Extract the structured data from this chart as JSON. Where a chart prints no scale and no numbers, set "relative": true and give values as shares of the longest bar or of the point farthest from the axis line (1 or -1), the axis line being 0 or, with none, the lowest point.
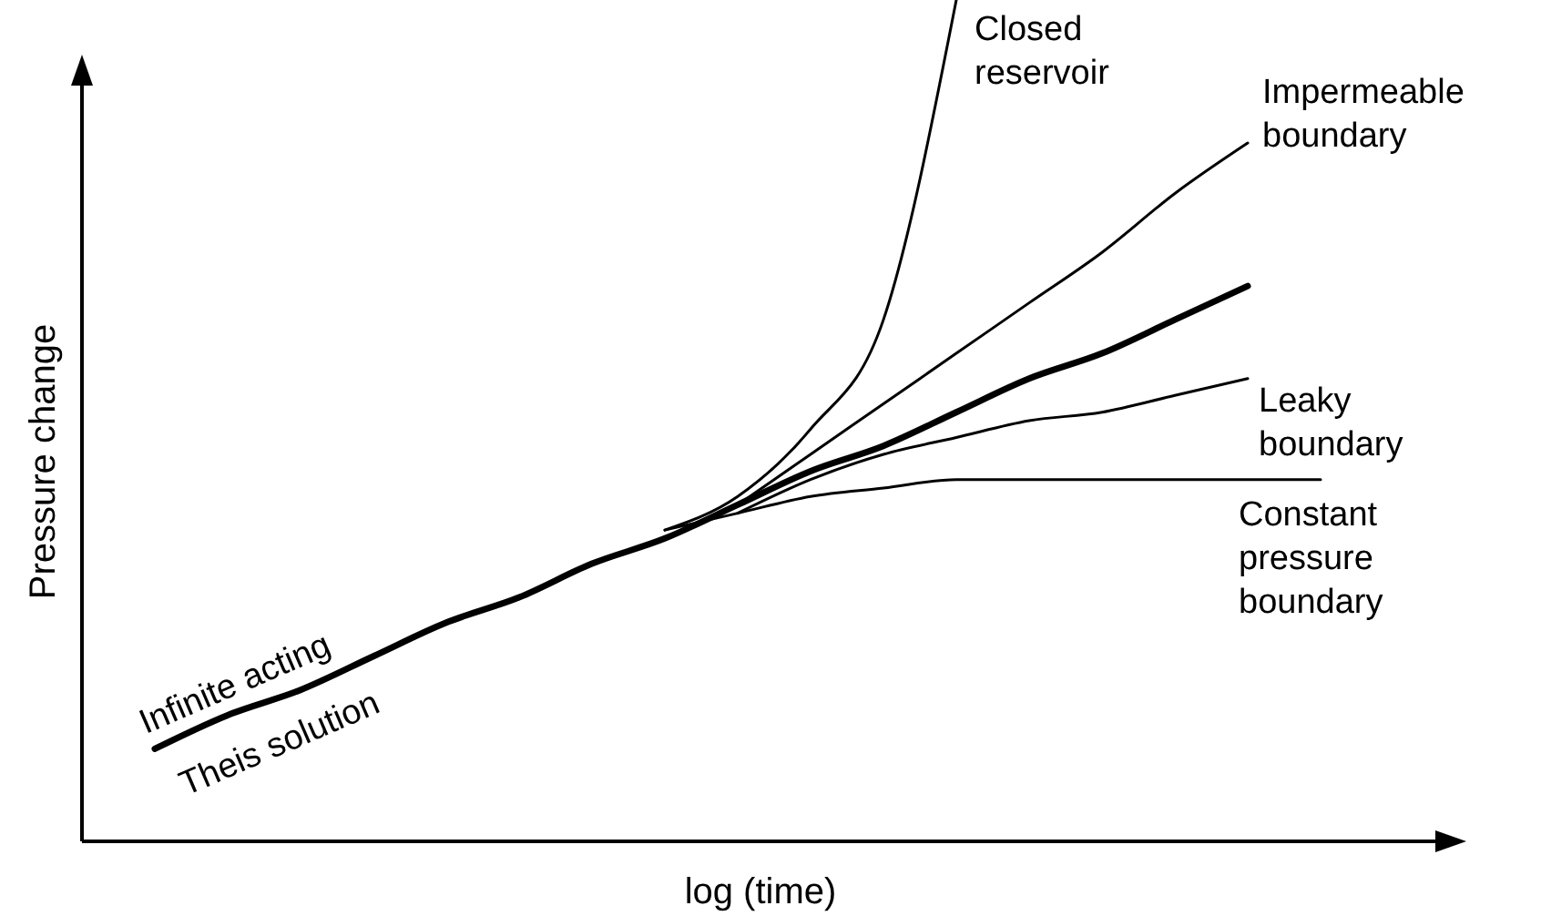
{
  "chart_data": {
    "type": "line",
    "relative": true,
    "xlabel": "log (time)",
    "ylabel": "Pressure change",
    "categories": [
      null,
      null,
      null,
      null,
      null,
      null,
      null,
      null,
      null,
      null,
      null,
      null,
      null,
      null,
      null,
      null,
      null
    ],
    "series": [
      {
        "name": "Infinite acting Theis solution",
        "color": "#000000",
        "values": [
          0.11,
          0.15,
          0.18,
          0.22,
          0.26,
          0.29,
          0.33,
          0.36,
          0.4,
          0.44,
          0.47,
          0.51,
          0.55,
          0.58,
          0.62,
          0.66,
          null
        ]
      },
      {
        "name": "Closed reservoir",
        "color": "#000000",
        "values": [
          null,
          null,
          null,
          null,
          null,
          null,
          null,
          0.37,
          0.41,
          0.49,
          0.62,
          1,
          null,
          null,
          null,
          null,
          null
        ]
      },
      {
        "name": "Impermeable boundary",
        "color": "#000000",
        "values": [
          null,
          null,
          null,
          null,
          null,
          null,
          null,
          null,
          0.4,
          0.46,
          0.52,
          0.58,
          0.64,
          0.7,
          0.77,
          0.83,
          null
        ]
      },
      {
        "name": "Leaky boundary",
        "color": "#000000",
        "values": [
          null,
          null,
          null,
          null,
          null,
          null,
          null,
          null,
          0.39,
          0.43,
          0.46,
          0.48,
          0.5,
          0.51,
          0.53,
          0.55,
          null
        ]
      },
      {
        "name": "Constant pressure boundary",
        "color": "#000000",
        "values": [
          null,
          null,
          null,
          null,
          null,
          null,
          null,
          0.37,
          0.39,
          0.41,
          0.42,
          0.43,
          0.43,
          0.43,
          0.43,
          0.43,
          0.43
        ]
      }
    ]
  }
}
